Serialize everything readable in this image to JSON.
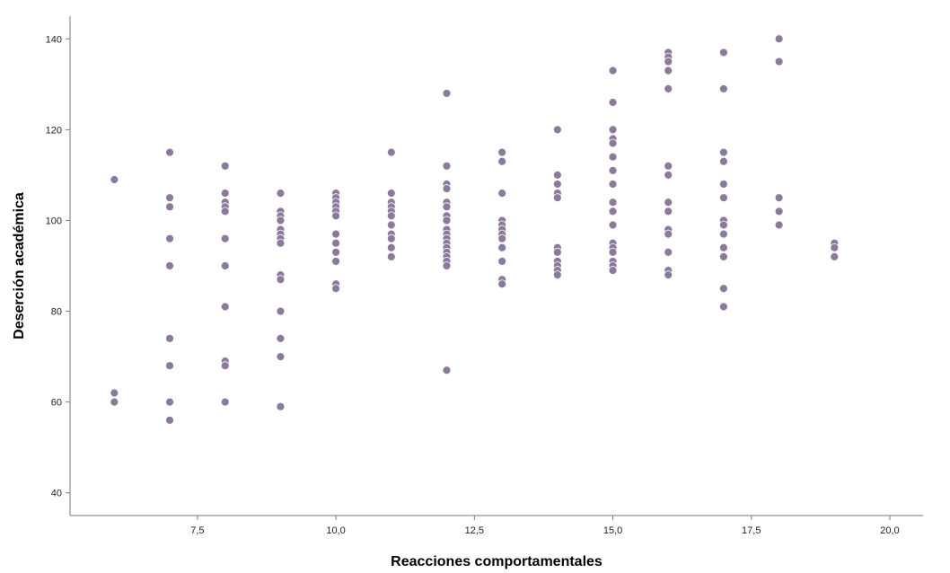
{
  "chart_data": {
    "type": "scatter",
    "title": "",
    "xlabel": "Reacciones comportamentales",
    "ylabel": "Deserción académica",
    "xlim": [
      5.2,
      20.6
    ],
    "ylim": [
      35,
      145
    ],
    "xticks": [
      7.5,
      10.0,
      12.5,
      15.0,
      17.5,
      20.0
    ],
    "xtick_labels": [
      "7,5",
      "10,0",
      "12,5",
      "15,0",
      "17,5",
      "20,0"
    ],
    "yticks": [
      40,
      60,
      80,
      100,
      120,
      140
    ],
    "ytick_labels": [
      "40",
      "60",
      "80",
      "100",
      "120",
      "140"
    ],
    "grid": false,
    "marker_color": "#8b7a9c",
    "series": [
      {
        "points": [
          [
            6,
            109
          ],
          [
            6,
            62
          ],
          [
            6,
            60
          ],
          [
            7,
            115
          ],
          [
            7,
            105
          ],
          [
            7,
            103
          ],
          [
            7,
            96
          ],
          [
            7,
            90
          ],
          [
            7,
            74
          ],
          [
            7,
            68
          ],
          [
            7,
            60
          ],
          [
            7,
            56
          ],
          [
            8,
            112
          ],
          [
            8,
            106
          ],
          [
            8,
            104
          ],
          [
            8,
            103
          ],
          [
            8,
            102
          ],
          [
            8,
            96
          ],
          [
            8,
            90
          ],
          [
            8,
            81
          ],
          [
            8,
            69
          ],
          [
            8,
            68
          ],
          [
            8,
            60
          ],
          [
            9,
            106
          ],
          [
            9,
            102
          ],
          [
            9,
            101
          ],
          [
            9,
            100
          ],
          [
            9,
            98
          ],
          [
            9,
            97
          ],
          [
            9,
            96
          ],
          [
            9,
            95
          ],
          [
            9,
            88
          ],
          [
            9,
            87
          ],
          [
            9,
            80
          ],
          [
            9,
            74
          ],
          [
            9,
            70
          ],
          [
            9,
            59
          ],
          [
            10,
            106
          ],
          [
            10,
            105
          ],
          [
            10,
            104
          ],
          [
            10,
            103
          ],
          [
            10,
            102
          ],
          [
            10,
            101
          ],
          [
            10,
            97
          ],
          [
            10,
            95
          ],
          [
            10,
            93
          ],
          [
            10,
            91
          ],
          [
            10,
            86
          ],
          [
            10,
            85
          ],
          [
            11,
            115
          ],
          [
            11,
            106
          ],
          [
            11,
            104
          ],
          [
            11,
            103
          ],
          [
            11,
            102
          ],
          [
            11,
            101
          ],
          [
            11,
            99
          ],
          [
            11,
            97
          ],
          [
            11,
            96
          ],
          [
            11,
            94
          ],
          [
            11,
            92
          ],
          [
            12,
            128
          ],
          [
            12,
            112
          ],
          [
            12,
            108
          ],
          [
            12,
            107
          ],
          [
            12,
            104
          ],
          [
            12,
            103
          ],
          [
            12,
            101
          ],
          [
            12,
            100
          ],
          [
            12,
            98
          ],
          [
            12,
            97
          ],
          [
            12,
            96
          ],
          [
            12,
            95
          ],
          [
            12,
            94
          ],
          [
            12,
            93
          ],
          [
            12,
            92
          ],
          [
            12,
            91
          ],
          [
            12,
            90
          ],
          [
            12,
            67
          ],
          [
            13,
            115
          ],
          [
            13,
            113
          ],
          [
            13,
            106
          ],
          [
            13,
            100
          ],
          [
            13,
            99
          ],
          [
            13,
            98
          ],
          [
            13,
            97
          ],
          [
            13,
            96
          ],
          [
            13,
            94
          ],
          [
            13,
            91
          ],
          [
            13,
            87
          ],
          [
            13,
            86
          ],
          [
            14,
            120
          ],
          [
            14,
            110
          ],
          [
            14,
            108
          ],
          [
            14,
            106
          ],
          [
            14,
            105
          ],
          [
            14,
            94
          ],
          [
            14,
            93
          ],
          [
            14,
            91
          ],
          [
            14,
            90
          ],
          [
            14,
            89
          ],
          [
            14,
            88
          ],
          [
            15,
            133
          ],
          [
            15,
            126
          ],
          [
            15,
            120
          ],
          [
            15,
            118
          ],
          [
            15,
            117
          ],
          [
            15,
            114
          ],
          [
            15,
            111
          ],
          [
            15,
            108
          ],
          [
            15,
            104
          ],
          [
            15,
            102
          ],
          [
            15,
            99
          ],
          [
            15,
            95
          ],
          [
            15,
            94
          ],
          [
            15,
            93
          ],
          [
            15,
            91
          ],
          [
            15,
            90
          ],
          [
            15,
            89
          ],
          [
            16,
            137
          ],
          [
            16,
            136
          ],
          [
            16,
            135
          ],
          [
            16,
            133
          ],
          [
            16,
            129
          ],
          [
            16,
            112
          ],
          [
            16,
            110
          ],
          [
            16,
            104
          ],
          [
            16,
            102
          ],
          [
            16,
            98
          ],
          [
            16,
            97
          ],
          [
            16,
            93
          ],
          [
            16,
            89
          ],
          [
            16,
            88
          ],
          [
            17,
            137
          ],
          [
            17,
            129
          ],
          [
            17,
            115
          ],
          [
            17,
            113
          ],
          [
            17,
            108
          ],
          [
            17,
            105
          ],
          [
            17,
            100
          ],
          [
            17,
            99
          ],
          [
            17,
            97
          ],
          [
            17,
            94
          ],
          [
            17,
            92
          ],
          [
            17,
            85
          ],
          [
            17,
            81
          ],
          [
            18,
            140
          ],
          [
            18,
            135
          ],
          [
            18,
            105
          ],
          [
            18,
            102
          ],
          [
            18,
            99
          ],
          [
            19,
            95
          ],
          [
            19,
            94
          ],
          [
            19,
            92
          ]
        ]
      }
    ]
  }
}
